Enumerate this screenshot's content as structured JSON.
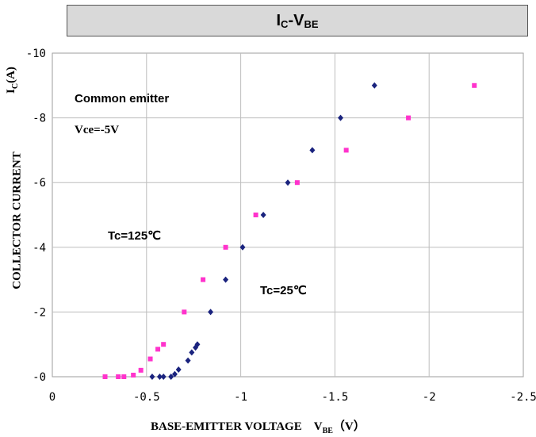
{
  "chart_data": {
    "type": "scatter",
    "title_main": "I",
    "title_main_sub": "C",
    "title_dash": "-V",
    "title_dash_sub": "BE",
    "ylabel": "COLLECTOR CURRENT",
    "ylabel_unit_main": "I",
    "ylabel_unit_sub": "C",
    "ylabel_unit_paren": "(A)",
    "xlabel": "BASE-EMITTER VOLTAGE",
    "xlabel_sym": "V",
    "xlabel_sym_sub": "BE",
    "xlabel_unit": "（V）",
    "xlim": [
      0,
      -2.5
    ],
    "ylim": [
      0,
      -10
    ],
    "xticks": [
      {
        "v": 0,
        "label": "0"
      },
      {
        "v": -0.5,
        "label": "-0.5"
      },
      {
        "v": -1,
        "label": "-1"
      },
      {
        "v": -1.5,
        "label": "-1.5"
      },
      {
        "v": -2,
        "label": "-2"
      },
      {
        "v": -2.5,
        "label": "-2.5"
      }
    ],
    "yticks": [
      {
        "v": 0,
        "label": "-0"
      },
      {
        "v": -2,
        "label": "-2"
      },
      {
        "v": -4,
        "label": "-4"
      },
      {
        "v": -6,
        "label": "-6"
      },
      {
        "v": -8,
        "label": "-8"
      },
      {
        "v": -10,
        "label": "-10"
      }
    ],
    "grid": true,
    "annotations": {
      "common_emitter": "Common emitter",
      "vce": "Vce=-5V",
      "tc125": "Tc=125℃",
      "tc25": "Tc=25℃"
    },
    "series": [
      {
        "color": "#ff33cc",
        "marker": "square",
        "points": [
          [
            -0.28,
            0
          ],
          [
            -0.35,
            0
          ],
          [
            -0.38,
            0
          ],
          [
            -0.43,
            0.05
          ],
          [
            -0.47,
            -0.2
          ],
          [
            -0.52,
            -0.55
          ],
          [
            -0.56,
            -0.85
          ],
          [
            -0.59,
            -1.0
          ],
          [
            -0.7,
            -2.0
          ],
          [
            -0.8,
            -3.0
          ],
          [
            -0.92,
            -4.0
          ],
          [
            -1.08,
            -5.0
          ],
          [
            -1.3,
            -6.0
          ],
          [
            -1.56,
            -7.0
          ],
          [
            -1.89,
            -8.0
          ],
          [
            -2.24,
            -9.0
          ]
        ]
      },
      {
        "color": "#1a237e",
        "marker": "diamond",
        "points": [
          [
            -0.53,
            0
          ],
          [
            -0.57,
            0
          ],
          [
            -0.59,
            0
          ],
          [
            -0.63,
            0
          ],
          [
            -0.65,
            -0.08
          ],
          [
            -0.67,
            -0.22
          ],
          [
            -0.72,
            -0.5
          ],
          [
            -0.74,
            -0.75
          ],
          [
            -0.76,
            -0.9
          ],
          [
            -0.77,
            -1.0
          ],
          [
            -0.84,
            -2.0
          ],
          [
            -0.92,
            -3.0
          ],
          [
            -1.01,
            -4.0
          ],
          [
            -1.12,
            -5.0
          ],
          [
            -1.25,
            -6.0
          ],
          [
            -1.38,
            -7.0
          ],
          [
            -1.53,
            -8.0
          ],
          [
            -1.71,
            -9.0
          ]
        ]
      }
    ]
  }
}
